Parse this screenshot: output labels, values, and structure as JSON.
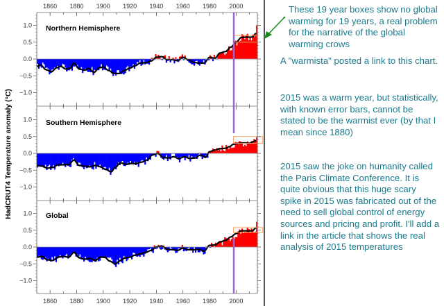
{
  "chart_data": {
    "type": "bar",
    "dataset_label": "HadCRUT4",
    "ylabel": "HadCRUT4   Temperature anomaly (°C)",
    "xlim": [
      1850,
      2016
    ],
    "ylim": [
      -1.35,
      1.4
    ],
    "x_ticks": [
      1860,
      1880,
      1900,
      1920,
      1940,
      1960,
      1980,
      2000
    ],
    "y_ticks": [
      1.0,
      0.5,
      0.0,
      -0.5,
      -1.0
    ],
    "y_tick_labels": [
      "1.0",
      "0.5",
      "0.0",
      "−0.5",
      "−1.0"
    ],
    "positive_color": "#ff0000",
    "negative_color": "#0000ff",
    "smooth_color": "#000000",
    "marker_line": {
      "year": 1998,
      "color": "#9966cc"
    },
    "box_color": "#f4a460",
    "panels": [
      {
        "name": "Northern Hemisphere",
        "box": {
          "x_start": 1998,
          "x_end": 2016,
          "y_low": 0.5,
          "y_high": 0.7
        },
        "smooth_knots": [
          [
            1850,
            -0.22
          ],
          [
            1853,
            -0.18
          ],
          [
            1857,
            -0.32
          ],
          [
            1861,
            -0.38
          ],
          [
            1865,
            -0.26
          ],
          [
            1868,
            -0.22
          ],
          [
            1872,
            -0.3
          ],
          [
            1875,
            -0.28
          ],
          [
            1878,
            -0.12
          ],
          [
            1882,
            -0.3
          ],
          [
            1886,
            -0.33
          ],
          [
            1889,
            -0.28
          ],
          [
            1893,
            -0.4
          ],
          [
            1897,
            -0.26
          ],
          [
            1900,
            -0.24
          ],
          [
            1904,
            -0.34
          ],
          [
            1908,
            -0.43
          ],
          [
            1912,
            -0.43
          ],
          [
            1916,
            -0.34
          ],
          [
            1920,
            -0.27
          ],
          [
            1924,
            -0.2
          ],
          [
            1928,
            -0.12
          ],
          [
            1932,
            -0.11
          ],
          [
            1936,
            -0.06
          ],
          [
            1940,
            0.05
          ],
          [
            1944,
            0.07
          ],
          [
            1948,
            -0.02
          ],
          [
            1952,
            -0.02
          ],
          [
            1956,
            -0.05
          ],
          [
            1960,
            0.05
          ],
          [
            1964,
            -0.02
          ],
          [
            1968,
            -0.1
          ],
          [
            1972,
            -0.12
          ],
          [
            1976,
            -0.12
          ],
          [
            1980,
            0.05
          ],
          [
            1984,
            0.02
          ],
          [
            1988,
            0.18
          ],
          [
            1992,
            0.22
          ],
          [
            1996,
            0.35
          ],
          [
            2000,
            0.5
          ],
          [
            2004,
            0.64
          ],
          [
            2008,
            0.65
          ],
          [
            2012,
            0.65
          ],
          [
            2015,
            0.76
          ]
        ],
        "anomaly_extremes": {
          "min": -0.65,
          "max": 1.0,
          "max_year": 2015
        }
      },
      {
        "name": "Southern Hemisphere",
        "box": {
          "x_start": 1998,
          "x_end": 2020,
          "y_low": 0.3,
          "y_high": 0.5
        },
        "smooth_knots": [
          [
            1850,
            -0.36
          ],
          [
            1854,
            -0.38
          ],
          [
            1858,
            -0.44
          ],
          [
            1862,
            -0.42
          ],
          [
            1866,
            -0.34
          ],
          [
            1870,
            -0.34
          ],
          [
            1874,
            -0.33
          ],
          [
            1878,
            -0.2
          ],
          [
            1882,
            -0.36
          ],
          [
            1886,
            -0.38
          ],
          [
            1890,
            -0.4
          ],
          [
            1894,
            -0.36
          ],
          [
            1898,
            -0.4
          ],
          [
            1902,
            -0.48
          ],
          [
            1906,
            -0.55
          ],
          [
            1909,
            -0.42
          ],
          [
            1913,
            -0.28
          ],
          [
            1917,
            -0.33
          ],
          [
            1921,
            -0.3
          ],
          [
            1925,
            -0.3
          ],
          [
            1929,
            -0.26
          ],
          [
            1933,
            -0.2
          ],
          [
            1937,
            -0.05
          ],
          [
            1941,
            0.0
          ],
          [
            1945,
            -0.12
          ],
          [
            1949,
            -0.14
          ],
          [
            1953,
            -0.1
          ],
          [
            1957,
            -0.16
          ],
          [
            1961,
            -0.1
          ],
          [
            1965,
            -0.15
          ],
          [
            1969,
            -0.14
          ],
          [
            1973,
            -0.05
          ],
          [
            1977,
            -0.12
          ],
          [
            1980,
            0.05
          ],
          [
            1984,
            0.1
          ],
          [
            1988,
            0.14
          ],
          [
            1992,
            0.15
          ],
          [
            1995,
            0.2
          ],
          [
            1998,
            0.27
          ],
          [
            2002,
            0.3
          ],
          [
            2006,
            0.31
          ],
          [
            2010,
            0.3
          ],
          [
            2015,
            0.38
          ]
        ],
        "anomaly_extremes": {
          "min": -0.65,
          "max": 0.48,
          "max_year": 2015
        }
      },
      {
        "name": "Global",
        "box": {
          "x_start": 1998,
          "x_end": 2020,
          "y_low": 0.43,
          "y_high": 0.58
        },
        "smooth_knots": [
          [
            1850,
            -0.3
          ],
          [
            1854,
            -0.28
          ],
          [
            1858,
            -0.38
          ],
          [
            1862,
            -0.4
          ],
          [
            1866,
            -0.3
          ],
          [
            1870,
            -0.28
          ],
          [
            1874,
            -0.3
          ],
          [
            1878,
            -0.16
          ],
          [
            1882,
            -0.32
          ],
          [
            1886,
            -0.36
          ],
          [
            1890,
            -0.34
          ],
          [
            1894,
            -0.4
          ],
          [
            1898,
            -0.3
          ],
          [
            1901,
            -0.3
          ],
          [
            1905,
            -0.42
          ],
          [
            1909,
            -0.5
          ],
          [
            1913,
            -0.4
          ],
          [
            1916,
            -0.33
          ],
          [
            1920,
            -0.3
          ],
          [
            1924,
            -0.24
          ],
          [
            1928,
            -0.2
          ],
          [
            1932,
            -0.16
          ],
          [
            1936,
            -0.1
          ],
          [
            1940,
            0.0
          ],
          [
            1944,
            0.03
          ],
          [
            1948,
            -0.06
          ],
          [
            1952,
            -0.08
          ],
          [
            1956,
            -0.1
          ],
          [
            1960,
            -0.03
          ],
          [
            1964,
            -0.08
          ],
          [
            1968,
            -0.08
          ],
          [
            1972,
            -0.07
          ],
          [
            1976,
            -0.12
          ],
          [
            1980,
            0.05
          ],
          [
            1984,
            0.06
          ],
          [
            1988,
            0.15
          ],
          [
            1992,
            0.2
          ],
          [
            1996,
            0.3
          ],
          [
            2000,
            0.4
          ],
          [
            2004,
            0.48
          ],
          [
            2008,
            0.48
          ],
          [
            2012,
            0.48
          ],
          [
            2015,
            0.57
          ]
        ],
        "anomaly_extremes": {
          "min": -0.55,
          "max": 0.75,
          "max_year": 2015
        }
      }
    ]
  },
  "annotations": {
    "note_1": "These 19 year boxes show no global warming for 19  years, a real problem for the narrative of the global warming crows",
    "note_2": "A \"warmista\" posted a link to this chart.",
    "note_3": "2015 was a warm year, but statistically, with known error bars, cannot be stated to be the warmist ever (by that I mean since 1880)",
    "note_4": "2015 saw the joke on humanity called the Paris Climate Conference.    It is quite obvious that this huge scary spike in 2015 was fabricated out of the need to sell global control of energy sources and pricing and profit.    I'll add a link in the article that shows the real analysis of 2015 temperatures",
    "arrow_color": "#1a8a1a",
    "text_color": "#1a7a8c"
  }
}
